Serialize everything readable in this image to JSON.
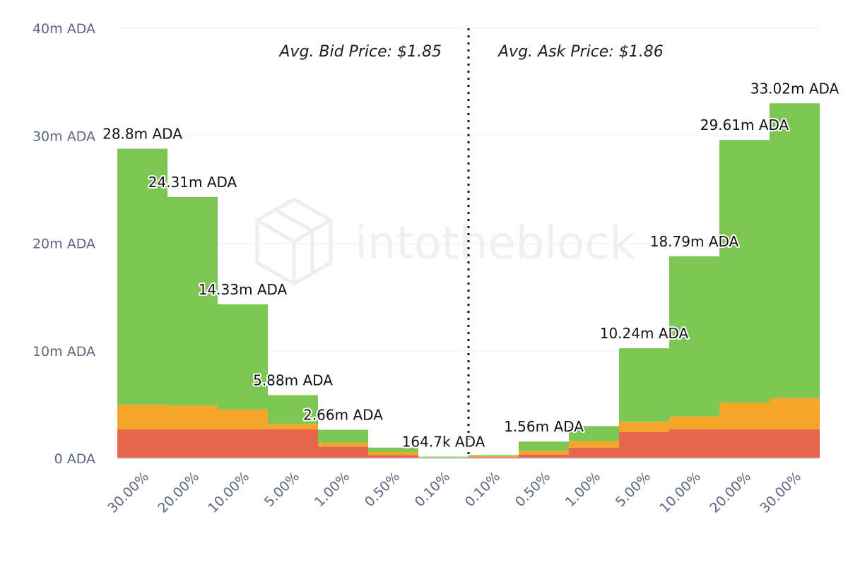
{
  "chart_data": {
    "type": "bar",
    "stacked": true,
    "categories": [
      "30.00%",
      "20.00%",
      "10.00%",
      "5.00%",
      "1.00%",
      "0.50%",
      "0.10%",
      "0.10%",
      "0.50%",
      "1.00%",
      "5.00%",
      "10.00%",
      "20.00%",
      "30.00%"
    ],
    "totals": [
      28.8,
      24.31,
      14.33,
      5.88,
      2.66,
      1.0,
      0.16,
      0.3,
      1.56,
      3.0,
      10.24,
      18.79,
      29.61,
      33.02
    ],
    "data_labels": [
      "28.8m ADA",
      "24.31m ADA",
      "14.33m ADA",
      "5.88m ADA",
      "2.66m ADA",
      "",
      "164.7k ADA",
      "",
      "1.56m ADA",
      "",
      "10.24m ADA",
      "18.79m ADA",
      "29.61m ADA",
      "33.02m ADA"
    ],
    "series": [
      {
        "color": "#e5654f",
        "values": [
          2.7,
          2.7,
          2.7,
          2.7,
          1.1,
          0.3,
          0.05,
          0.1,
          0.35,
          1.0,
          2.45,
          2.7,
          2.7,
          2.7
        ]
      },
      {
        "color": "#f4a52a",
        "values": [
          2.3,
          2.2,
          1.85,
          0.5,
          0.35,
          0.3,
          0.03,
          0.1,
          0.35,
          0.6,
          0.95,
          1.2,
          2.5,
          2.9
        ]
      },
      {
        "color": "#7ec654",
        "values": [
          23.8,
          19.41,
          9.78,
          2.68,
          1.21,
          0.4,
          0.08,
          0.1,
          0.86,
          1.4,
          6.84,
          14.89,
          24.41,
          27.42
        ]
      }
    ],
    "yaxis": {
      "ticks": [
        "0 ADA",
        "10m ADA",
        "20m ADA",
        "30m ADA",
        "40m ADA"
      ],
      "min": 0,
      "max": 40
    },
    "grid": true,
    "annotations": {
      "bid": "Avg. Bid Price: $1.85",
      "ask": "Avg. Ask Price: $1.86"
    },
    "watermark": "intotheblock"
  }
}
